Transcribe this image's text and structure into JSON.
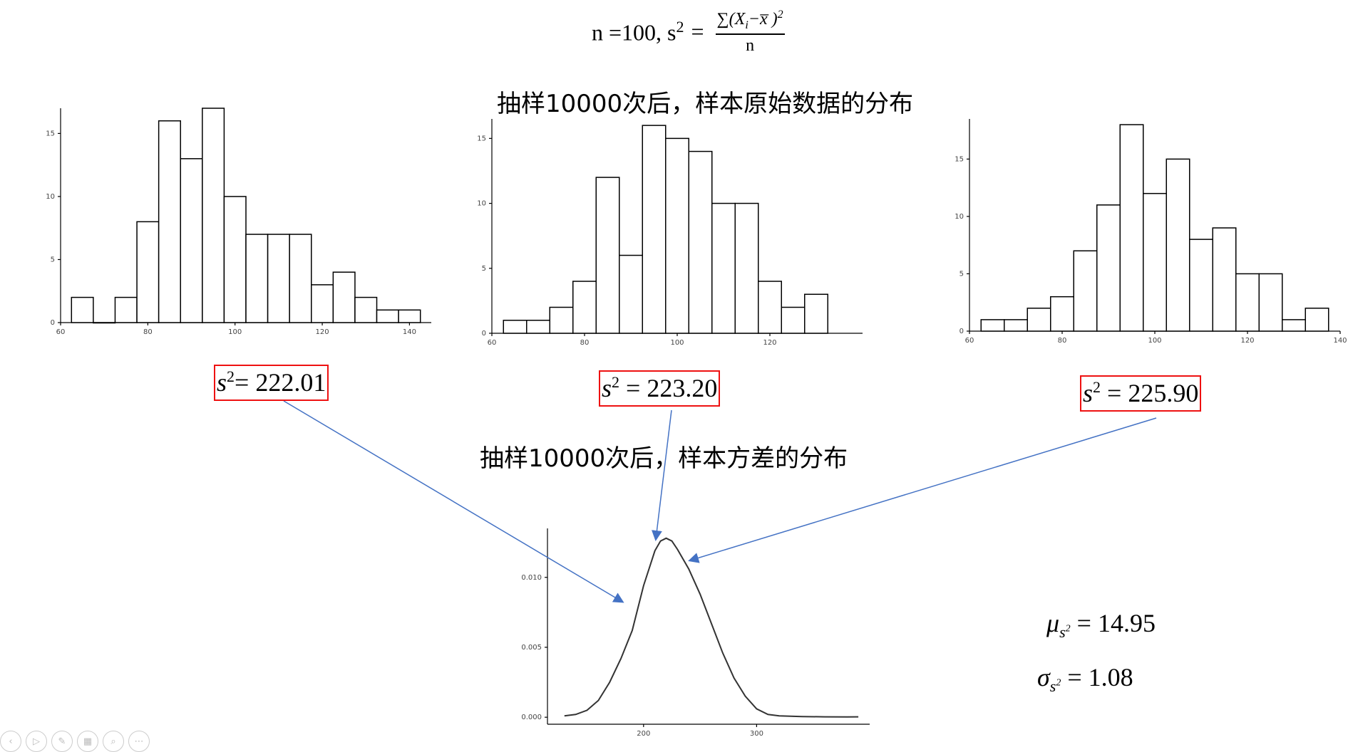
{
  "formula": {
    "left": "n =100, s",
    "sup": "2",
    "equals": "=",
    "numerator_prefix": "∑(X",
    "numerator_sub": "i",
    "numerator_mid": "−x̅ )",
    "numerator_sup": "2",
    "denominator": "n"
  },
  "headings": {
    "raw": "抽样10000次后，样本原始数据的分布",
    "variance": "抽样10000次后，样本方差的分布"
  },
  "samples": [
    {
      "var": "s",
      "sup": "2",
      "value": "= 222.01"
    },
    {
      "var": "s",
      "sup": "2",
      "value": " =  223.20"
    },
    {
      "var": "s",
      "sup": "2",
      "value": " =  225.90"
    }
  ],
  "stats": {
    "mu": {
      "sym": "μ",
      "sub": "s",
      "subsup": "2",
      "value": " = 14.95"
    },
    "sigma": {
      "sym": "σ",
      "sub": "s",
      "subsup": "2",
      "value": "  = 1.08"
    }
  },
  "colors": {
    "box": "#ee1111",
    "arrow": "#4472c4",
    "bar_stroke": "#000000"
  },
  "toolbar_icons": [
    "back-icon",
    "play-icon",
    "pen-icon",
    "grid-icon",
    "zoom-icon",
    "more-icon"
  ],
  "chart_data": [
    {
      "type": "bar",
      "title": "",
      "xlabel": "",
      "ylabel": "",
      "xlim": [
        60,
        145
      ],
      "ylim": [
        0,
        17
      ],
      "xticks": [
        60,
        80,
        100,
        120,
        140
      ],
      "yticks": [
        0,
        5,
        10,
        15
      ],
      "bin_edges": [
        62.5,
        67.5,
        72.5,
        77.5,
        82.5,
        87.5,
        92.5,
        97.5,
        102.5,
        107.5,
        112.5,
        117.5,
        122.5,
        127.5,
        132.5,
        137.5,
        142.5
      ],
      "values": [
        2,
        0,
        2,
        8,
        16,
        13,
        17,
        10,
        7,
        7,
        7,
        3,
        4,
        2,
        1,
        1
      ]
    },
    {
      "type": "bar",
      "title": "",
      "xlabel": "",
      "ylabel": "",
      "xlim": [
        60,
        140
      ],
      "ylim": [
        0,
        16.5
      ],
      "xticks": [
        60,
        80,
        100,
        120
      ],
      "yticks": [
        0,
        5,
        10,
        15
      ],
      "bin_edges": [
        62.5,
        67.5,
        72.5,
        77.5,
        82.5,
        87.5,
        92.5,
        97.5,
        102.5,
        107.5,
        112.5,
        117.5,
        122.5,
        127.5,
        132.5
      ],
      "values": [
        1,
        1,
        2,
        4,
        12,
        6,
        16,
        15,
        14,
        10,
        10,
        4,
        2,
        3
      ]
    },
    {
      "type": "bar",
      "title": "",
      "xlabel": "",
      "ylabel": "",
      "xlim": [
        60,
        140
      ],
      "ylim": [
        0,
        18.5
      ],
      "xticks": [
        60,
        80,
        100,
        120,
        140
      ],
      "yticks": [
        0,
        5,
        10,
        15
      ],
      "bin_edges": [
        62.5,
        67.5,
        72.5,
        77.5,
        82.5,
        87.5,
        92.5,
        97.5,
        102.5,
        107.5,
        112.5,
        117.5,
        122.5,
        127.5,
        132.5,
        137.5
      ],
      "values": [
        1,
        1,
        2,
        3,
        7,
        11,
        18,
        12,
        15,
        8,
        9,
        5,
        5,
        1,
        2
      ]
    },
    {
      "type": "line",
      "title": "",
      "xlabel": "",
      "ylabel": "",
      "xlim": [
        115,
        400
      ],
      "ylim": [
        -0.0005,
        0.0135
      ],
      "xticks": [
        200,
        300
      ],
      "yticks": [
        0.0,
        0.005,
        0.01
      ],
      "ytick_labels": [
        "0.000",
        "0.005",
        "0.010"
      ],
      "x": [
        130,
        140,
        150,
        160,
        170,
        180,
        190,
        200,
        210,
        215,
        220,
        225,
        230,
        240,
        250,
        260,
        270,
        280,
        290,
        300,
        310,
        320,
        340,
        360,
        380,
        390
      ],
      "y": [
        0.0001,
        0.0002,
        0.0005,
        0.0012,
        0.0025,
        0.0042,
        0.0062,
        0.0094,
        0.0119,
        0.0126,
        0.0128,
        0.0126,
        0.012,
        0.0106,
        0.0088,
        0.0067,
        0.0046,
        0.0028,
        0.0015,
        0.0006,
        0.0002,
        0.0001,
        5e-05,
        3e-05,
        2e-05,
        3e-05
      ]
    }
  ]
}
